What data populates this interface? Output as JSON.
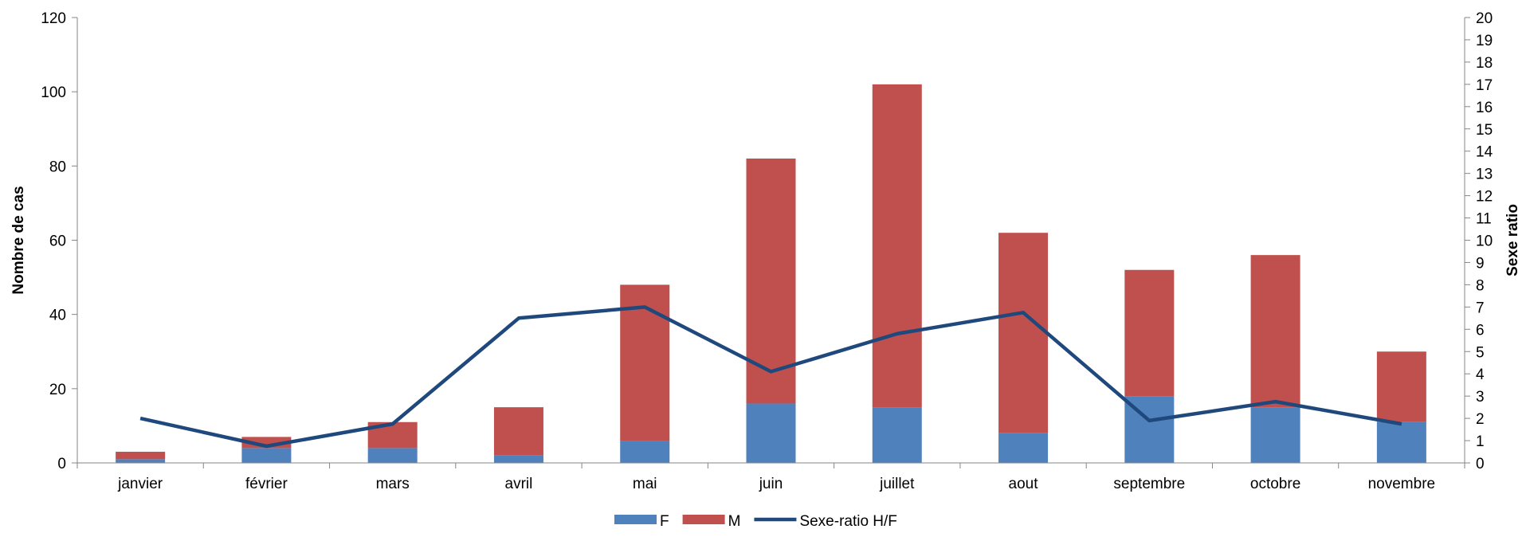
{
  "chart_data": {
    "type": "bar",
    "stacked": true,
    "categories": [
      "janvier",
      "février",
      "mars",
      "avril",
      "mai",
      "juin",
      "juillet",
      "aout",
      "septembre",
      "octobre",
      "novembre"
    ],
    "series": [
      {
        "name": "F",
        "type": "bar",
        "axis": "left",
        "color": "#4F81BD",
        "values": [
          1,
          4,
          4,
          2,
          6,
          16,
          15,
          8,
          18,
          15,
          11
        ]
      },
      {
        "name": "M",
        "type": "bar",
        "axis": "left",
        "color": "#C0504D",
        "values": [
          2,
          3,
          7,
          13,
          42,
          66,
          87,
          54,
          34,
          41,
          19
        ]
      },
      {
        "name": "Sexe-ratio H/F",
        "type": "line",
        "axis": "right",
        "color": "#1F497D",
        "values": [
          2.0,
          0.75,
          1.75,
          6.5,
          7.0,
          4.1,
          5.8,
          6.75,
          1.9,
          2.75,
          1.75
        ]
      }
    ],
    "ylabel": "Nombre de cas",
    "ylabel_right": "Sexe ratio",
    "ylim": [
      0,
      120
    ],
    "ylim_right": [
      0,
      20
    ],
    "yticks": [
      "0",
      "20",
      "40",
      "60",
      "80",
      "100",
      "120"
    ],
    "yticks_right": [
      "0",
      "1",
      "2",
      "3",
      "4",
      "5",
      "6",
      "7",
      "8",
      "9",
      "10",
      "11",
      "12",
      "13",
      "14",
      "15",
      "16",
      "17",
      "18",
      "19",
      "20"
    ],
    "grid": false,
    "legend_position": "bottom-center"
  }
}
